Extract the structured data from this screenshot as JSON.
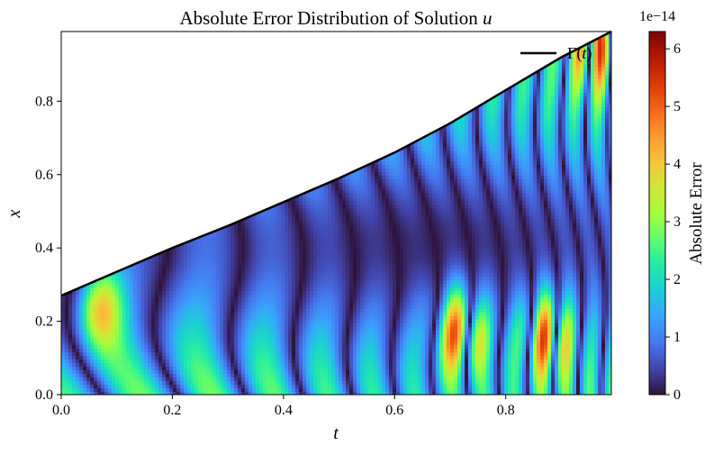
{
  "chart_data": {
    "type": "heatmap",
    "title": "Absolute Error Distribution of Solution u",
    "title_main": "Absolute Error Distribution of Solution ",
    "title_var": "u",
    "xlabel": "t",
    "ylabel": "x",
    "xlim": [
      0.0,
      0.99
    ],
    "ylim": [
      0.0,
      0.99
    ],
    "x_ticks": [
      0.0,
      0.2,
      0.4,
      0.6,
      0.8
    ],
    "x_tick_labels": [
      "0.0",
      "0.2",
      "0.4",
      "0.6",
      "0.8"
    ],
    "y_ticks": [
      0.0,
      0.2,
      0.4,
      0.6,
      0.8
    ],
    "y_tick_labels": [
      "0.0",
      "0.2",
      "0.4",
      "0.6",
      "0.8"
    ],
    "colormap": "turbo",
    "colorbar": {
      "label": "Absolute Error",
      "range": [
        0,
        6.3
      ],
      "ticks": [
        0,
        1,
        2,
        3,
        4,
        5,
        6
      ],
      "tick_labels": [
        "0",
        "1",
        "2",
        "3",
        "4",
        "5",
        "6"
      ],
      "scale_label": "1e−14",
      "scale_exponent": -14
    },
    "boundary": {
      "name": "Γ(t)",
      "color": "#000000",
      "points": [
        {
          "t": 0.0,
          "x": 0.27
        },
        {
          "t": 0.1,
          "x": 0.335
        },
        {
          "t": 0.2,
          "x": 0.4
        },
        {
          "t": 0.3,
          "x": 0.46
        },
        {
          "t": 0.4,
          "x": 0.525
        },
        {
          "t": 0.5,
          "x": 0.59
        },
        {
          "t": 0.6,
          "x": 0.66
        },
        {
          "t": 0.7,
          "x": 0.74
        },
        {
          "t": 0.8,
          "x": 0.83
        },
        {
          "t": 0.9,
          "x": 0.92
        },
        {
          "t": 0.99,
          "x": 0.99
        }
      ]
    },
    "legend": {
      "position": "top-right",
      "entries": [
        {
          "label": "Γ(t)",
          "label_main": "Γ(",
          "label_var": "t",
          "label_end": ")"
        }
      ]
    },
    "notable_maxima": [
      {
        "t": 0.72,
        "x": 0.17,
        "value": 6.2
      },
      {
        "t": 0.875,
        "x": 0.16,
        "value": 5.5
      },
      {
        "t": 0.065,
        "x": 0.24,
        "value": 4.5
      },
      {
        "t": 0.96,
        "x": 0.95,
        "value": 4.5
      }
    ],
    "grid": false
  }
}
